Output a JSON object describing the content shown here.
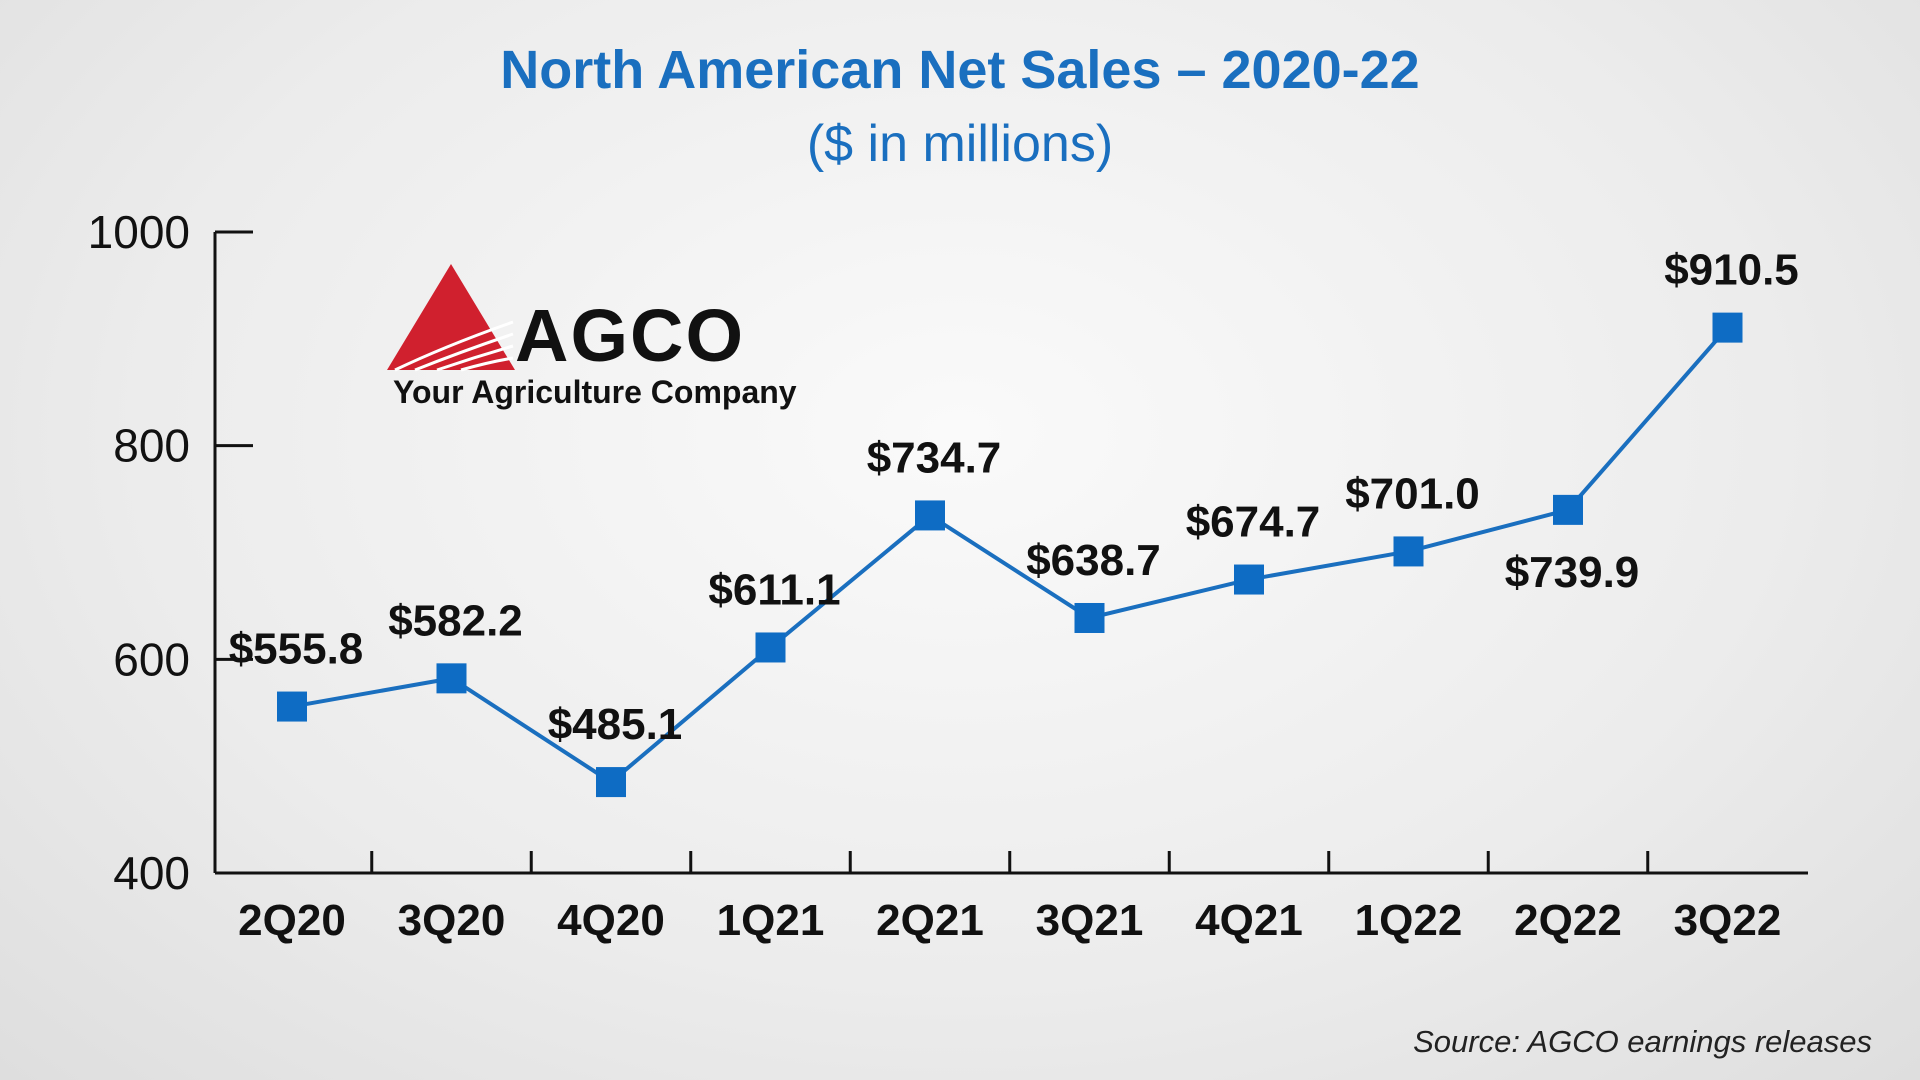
{
  "chart_data": {
    "type": "line",
    "title": "North American Net Sales – 2020-22",
    "subtitle": "($ in millions)",
    "categories": [
      "2Q20",
      "3Q20",
      "4Q20",
      "1Q21",
      "2Q21",
      "3Q21",
      "4Q21",
      "1Q22",
      "2Q22",
      "3Q22"
    ],
    "values": [
      555.8,
      582.2,
      485.1,
      611.1,
      734.7,
      638.7,
      674.7,
      701.0,
      739.9,
      910.5
    ],
    "data_labels": [
      "$555.8",
      "$582.2",
      "$485.1",
      "$611.1",
      "$734.7",
      "$638.7",
      "$674.7",
      "$701.0",
      "$739.9",
      "$910.5"
    ],
    "label_positions": [
      "above",
      "above",
      "above",
      "above",
      "above",
      "above",
      "above",
      "above",
      "below",
      "above"
    ],
    "yticks": [
      400,
      600,
      800,
      1000
    ],
    "ylim": [
      400,
      1000
    ],
    "grid": false,
    "legend": "none",
    "colors": {
      "title": "#1a6fbf",
      "line": "#1a6fbf",
      "marker": "#0e6cc4",
      "axis": "#111111"
    },
    "marker": "square"
  },
  "logo": {
    "name": "AGCO",
    "tagline": "Your Agriculture Company",
    "colors": {
      "triangle": "#d0202e",
      "text": "#111111"
    }
  },
  "source": "Source: AGCO earnings releases"
}
